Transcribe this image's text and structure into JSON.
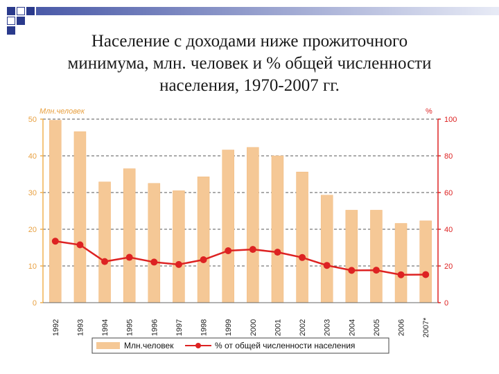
{
  "slide": {
    "title_lines": [
      "Население с доходами ниже прожиточного",
      "минимума, млн. человек и % общей численности",
      "населения, 1970-2007 гг."
    ]
  },
  "chart_data": {
    "type": "bar",
    "categories": [
      "1992",
      "1993",
      "1994",
      "1995",
      "1996",
      "1997",
      "1998",
      "1999",
      "2000",
      "2001",
      "2002",
      "2003",
      "2004",
      "2005",
      "2006",
      "2007*"
    ],
    "series": [
      {
        "name": "Млн.человек",
        "type": "bar",
        "axis": "left",
        "values": [
          49.7,
          46.6,
          32.9,
          36.5,
          32.5,
          30.5,
          34.3,
          41.6,
          42.3,
          40.0,
          35.6,
          29.3,
          25.2,
          25.2,
          21.6,
          22.3
        ],
        "color": "#f5c896"
      },
      {
        "name": "% от общей численности населения",
        "type": "line",
        "axis": "right",
        "values": [
          33.5,
          31.5,
          22.4,
          24.7,
          22.1,
          20.8,
          23.4,
          28.3,
          29.0,
          27.5,
          24.6,
          20.3,
          17.6,
          17.7,
          15.2,
          15.3
        ],
        "color": "#dd2222"
      }
    ],
    "left_axis": {
      "label": "Млн.человек",
      "ylim": [
        0,
        50
      ],
      "ticks": [
        "0",
        "10",
        "20",
        "30",
        "40",
        "50"
      ]
    },
    "right_axis": {
      "label": "%",
      "ylim": [
        0,
        100
      ],
      "ticks": [
        "0",
        "20",
        "40",
        "60",
        "80",
        "100"
      ]
    },
    "grid": true,
    "legend_position": "bottom"
  }
}
